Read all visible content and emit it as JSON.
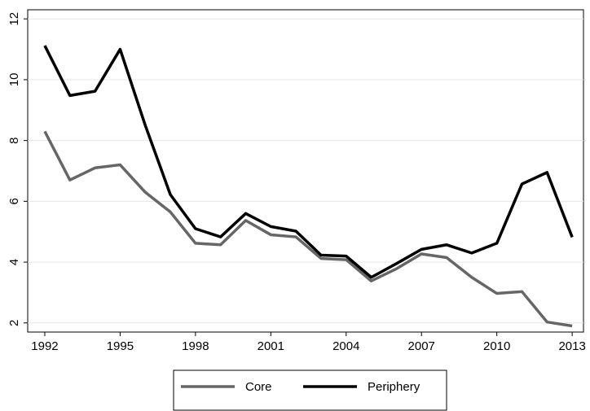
{
  "chart_data": {
    "type": "line",
    "x": [
      1992,
      1993,
      1994,
      1995,
      1996,
      1997,
      1998,
      1999,
      2000,
      2001,
      2002,
      2003,
      2004,
      2005,
      2006,
      2007,
      2008,
      2009,
      2010,
      2011,
      2012,
      2013
    ],
    "series": [
      {
        "name": "Core",
        "color": "#666666",
        "values": [
          8.3,
          6.7,
          7.1,
          7.2,
          6.3,
          5.65,
          4.62,
          4.57,
          5.37,
          4.9,
          4.83,
          4.12,
          4.08,
          3.38,
          3.78,
          4.27,
          4.15,
          3.5,
          2.97,
          3.03,
          2.03,
          1.9
        ]
      },
      {
        "name": "Periphery",
        "color": "#000000",
        "values": [
          11.12,
          9.48,
          9.62,
          11.0,
          8.5,
          6.22,
          5.1,
          4.83,
          5.6,
          5.17,
          5.02,
          4.23,
          4.2,
          3.5,
          3.95,
          4.42,
          4.57,
          4.3,
          4.62,
          6.57,
          6.95,
          4.82
        ]
      }
    ],
    "xlim": [
      1991.32,
      2013.45
    ],
    "xticks": [
      1992,
      1995,
      1998,
      2001,
      2004,
      2007,
      2010,
      2013
    ],
    "ylim": [
      1.7,
      12.3
    ],
    "yticks": [
      2,
      4,
      6,
      8,
      10,
      12
    ],
    "grid": true,
    "legend": "bottom"
  }
}
